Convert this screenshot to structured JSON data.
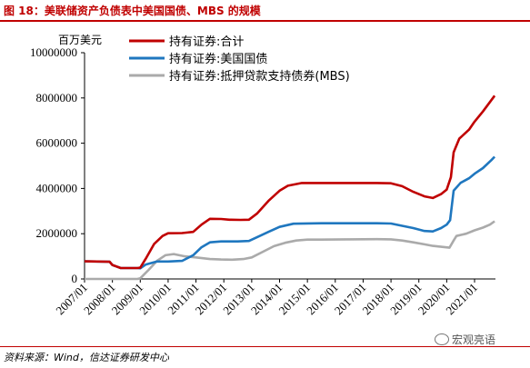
{
  "header": {
    "title": "图 18：美联储资产负债表中美国国债、MBS 的规模"
  },
  "footer": {
    "source": "资料来源：Wind，信达证券研发中心",
    "watermark": "宏观亮语"
  },
  "colors": {
    "accent": "#c00000",
    "treasury": "#1f77bf",
    "mbs": "#aaaaaa"
  },
  "chart_data": {
    "type": "line",
    "title": "",
    "ylabel": "百万美元",
    "xlabel": "",
    "ylim": [
      0,
      10000000
    ],
    "xlim": [
      2007.0,
      2021.75
    ],
    "grid": false,
    "legend": "top-center",
    "y_ticks": [
      "0",
      "2000000",
      "4000000",
      "6000000",
      "8000000",
      "10000000"
    ],
    "x_ticks": [
      "2007/01",
      "2008/01",
      "2009/01",
      "2010/01",
      "2011/01",
      "2012/01",
      "2013/01",
      "2014/01",
      "2015/01",
      "2016/01",
      "2017/01",
      "2018/01",
      "2019/01",
      "2020/01",
      "2021/01"
    ],
    "series": [
      {
        "name": "持有证券:合计",
        "color": "#c00000",
        "points": [
          [
            2007.0,
            780000
          ],
          [
            2007.9,
            760000
          ],
          [
            2008.0,
            620000
          ],
          [
            2008.3,
            480000
          ],
          [
            2008.9,
            480000
          ],
          [
            2009.0,
            500000
          ],
          [
            2009.2,
            900000
          ],
          [
            2009.5,
            1550000
          ],
          [
            2009.8,
            1900000
          ],
          [
            2010.0,
            2020000
          ],
          [
            2010.5,
            2030000
          ],
          [
            2010.9,
            2080000
          ],
          [
            2011.2,
            2400000
          ],
          [
            2011.5,
            2660000
          ],
          [
            2011.9,
            2650000
          ],
          [
            2012.2,
            2620000
          ],
          [
            2012.6,
            2610000
          ],
          [
            2012.9,
            2620000
          ],
          [
            2013.2,
            2900000
          ],
          [
            2013.6,
            3450000
          ],
          [
            2014.0,
            3900000
          ],
          [
            2014.3,
            4120000
          ],
          [
            2014.8,
            4240000
          ],
          [
            2015.5,
            4240000
          ],
          [
            2016.5,
            4240000
          ],
          [
            2017.5,
            4240000
          ],
          [
            2018.0,
            4230000
          ],
          [
            2018.4,
            4100000
          ],
          [
            2018.8,
            3850000
          ],
          [
            2019.2,
            3650000
          ],
          [
            2019.5,
            3580000
          ],
          [
            2019.8,
            3750000
          ],
          [
            2020.0,
            3950000
          ],
          [
            2020.15,
            4500000
          ],
          [
            2020.25,
            5600000
          ],
          [
            2020.45,
            6200000
          ],
          [
            2020.8,
            6600000
          ],
          [
            2021.0,
            6950000
          ],
          [
            2021.3,
            7400000
          ],
          [
            2021.6,
            7900000
          ],
          [
            2021.72,
            8100000
          ]
        ]
      },
      {
        "name": "持有证券:美国国债",
        "color": "#1f77bf",
        "points": [
          [
            2007.0,
            780000
          ],
          [
            2007.9,
            760000
          ],
          [
            2008.0,
            620000
          ],
          [
            2008.3,
            480000
          ],
          [
            2008.9,
            480000
          ],
          [
            2009.0,
            470000
          ],
          [
            2009.2,
            640000
          ],
          [
            2009.6,
            770000
          ],
          [
            2010.0,
            770000
          ],
          [
            2010.5,
            800000
          ],
          [
            2010.9,
            1050000
          ],
          [
            2011.2,
            1400000
          ],
          [
            2011.5,
            1620000
          ],
          [
            2011.9,
            1660000
          ],
          [
            2012.5,
            1660000
          ],
          [
            2012.9,
            1680000
          ],
          [
            2013.2,
            1850000
          ],
          [
            2013.6,
            2080000
          ],
          [
            2014.0,
            2300000
          ],
          [
            2014.5,
            2440000
          ],
          [
            2015.5,
            2460000
          ],
          [
            2016.5,
            2460000
          ],
          [
            2017.5,
            2460000
          ],
          [
            2018.0,
            2450000
          ],
          [
            2018.4,
            2350000
          ],
          [
            2018.8,
            2250000
          ],
          [
            2019.2,
            2120000
          ],
          [
            2019.5,
            2100000
          ],
          [
            2019.8,
            2250000
          ],
          [
            2020.0,
            2400000
          ],
          [
            2020.12,
            2600000
          ],
          [
            2020.25,
            3900000
          ],
          [
            2020.5,
            4250000
          ],
          [
            2020.8,
            4450000
          ],
          [
            2021.0,
            4650000
          ],
          [
            2021.3,
            4900000
          ],
          [
            2021.6,
            5250000
          ],
          [
            2021.72,
            5400000
          ]
        ]
      },
      {
        "name": "持有证券:抵押贷款支持债券(MBS)",
        "color": "#aaaaaa",
        "points": [
          [
            2007.0,
            0
          ],
          [
            2008.9,
            0
          ],
          [
            2009.0,
            30000
          ],
          [
            2009.3,
            400000
          ],
          [
            2009.6,
            800000
          ],
          [
            2009.9,
            1050000
          ],
          [
            2010.2,
            1100000
          ],
          [
            2010.6,
            1000000
          ],
          [
            2011.0,
            950000
          ],
          [
            2011.5,
            880000
          ],
          [
            2011.9,
            860000
          ],
          [
            2012.3,
            850000
          ],
          [
            2012.7,
            880000
          ],
          [
            2013.0,
            950000
          ],
          [
            2013.4,
            1200000
          ],
          [
            2013.8,
            1450000
          ],
          [
            2014.2,
            1600000
          ],
          [
            2014.6,
            1700000
          ],
          [
            2015.0,
            1740000
          ],
          [
            2015.5,
            1740000
          ],
          [
            2016.5,
            1750000
          ],
          [
            2017.5,
            1760000
          ],
          [
            2018.0,
            1750000
          ],
          [
            2018.4,
            1700000
          ],
          [
            2018.8,
            1620000
          ],
          [
            2019.2,
            1530000
          ],
          [
            2019.5,
            1460000
          ],
          [
            2019.8,
            1420000
          ],
          [
            2020.1,
            1380000
          ],
          [
            2020.25,
            1700000
          ],
          [
            2020.35,
            1900000
          ],
          [
            2020.7,
            2000000
          ],
          [
            2021.0,
            2150000
          ],
          [
            2021.3,
            2270000
          ],
          [
            2021.55,
            2400000
          ],
          [
            2021.72,
            2550000
          ]
        ]
      }
    ]
  }
}
